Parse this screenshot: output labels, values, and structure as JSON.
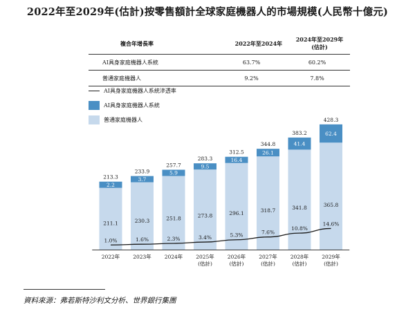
{
  "title": "2022年至2029年(估計)按零售額計全球家庭機器人的市場規模(人民幣十億元)",
  "cagr_table": {
    "header": [
      "複合年增長率",
      "2022年至2024年",
      "2024年至2029年\n(估計)"
    ],
    "rows": [
      [
        "AI具身家庭機器人系統",
        "63.7%",
        "60.2%"
      ],
      [
        "普通家庭機器人",
        "9.2%",
        "7.8%"
      ]
    ]
  },
  "legend": [
    {
      "label": "AI具身家庭機器人系統滲透率",
      "kind": "line",
      "color": "#1a1a1a"
    },
    {
      "label": "AI具身家庭機器人系統",
      "kind": "bar",
      "color": "#4a8fc4"
    },
    {
      "label": "普通家庭機器人",
      "kind": "bar",
      "color": "#c6d9ec"
    }
  ],
  "colors": {
    "ai": "#4a8fc4",
    "normal": "#c6d9ec",
    "line": "#1a1a1a"
  },
  "source": "資料來源：弗若斯特沙利文分析、世界銀行集團",
  "chart_data": {
    "type": "bar",
    "stacked": true,
    "categories": [
      "2022年",
      "2023年",
      "2024年",
      "2025年\n(估計)",
      "2026年\n(估計)",
      "2027年\n(估計)",
      "2028年\n(估計)",
      "2029年\n(估計)"
    ],
    "series": [
      {
        "name": "普通家庭機器人",
        "values": [
          211.1,
          230.3,
          251.8,
          273.8,
          296.1,
          318.7,
          341.8,
          365.8
        ],
        "labels": [
          "211.1",
          "230.3",
          "251.8",
          "273.8",
          "296.1",
          "318.7",
          "341.8",
          "365.8"
        ]
      },
      {
        "name": "AI具身家庭機器人系統",
        "values": [
          2.2,
          3.7,
          5.9,
          9.5,
          16.4,
          26.1,
          41.4,
          62.4
        ],
        "labels": [
          "2.2",
          "3.7",
          "5.9",
          "9.5",
          "16.4",
          "26.1",
          "41.4",
          "62.4"
        ]
      }
    ],
    "totals": [
      213.3,
      233.9,
      257.7,
      283.3,
      312.5,
      344.8,
      383.2,
      428.3
    ],
    "total_labels": [
      "213.3",
      "233.9",
      "257.7",
      "283.3",
      "312.5",
      "344.8",
      "383.2",
      "428.3"
    ],
    "penetration": {
      "name": "AI具身家庭機器人系統滲透率",
      "values": [
        1.0,
        1.6,
        2.3,
        3.4,
        5.3,
        7.6,
        10.8,
        14.6
      ],
      "labels": [
        "1.0%",
        "1.6%",
        "2.3%",
        "3.4%",
        "5.3%",
        "7.6%",
        "10.8%",
        "14.6%"
      ]
    },
    "ylim": [
      0,
      440
    ],
    "grid": false
  }
}
